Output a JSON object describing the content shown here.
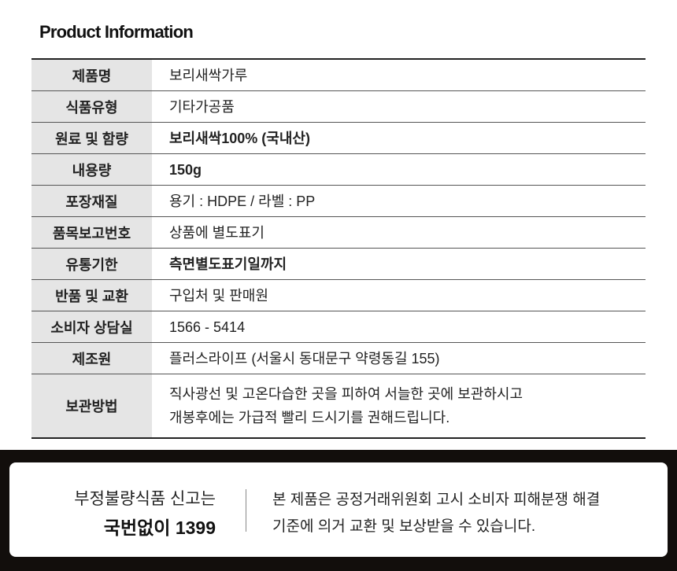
{
  "title": "Product Information",
  "rows": [
    {
      "label": "제품명",
      "value": "보리새싹가루",
      "bold": false
    },
    {
      "label": "식품유형",
      "value": "기타가공품",
      "bold": false
    },
    {
      "label": "원료 및 함량",
      "value": "보리새싹100% (국내산)",
      "bold": true
    },
    {
      "label": "내용량",
      "value": "150g",
      "bold": true
    },
    {
      "label": "포장재질",
      "value": "용기 : HDPE / 라벨 : PP",
      "bold": false
    },
    {
      "label": "품목보고번호",
      "value": "상품에 별도표기",
      "bold": false
    },
    {
      "label": "유통기한",
      "value": "측면별도표기일까지",
      "bold": true
    },
    {
      "label": "반품 및 교환",
      "value": "구입처 및 판매원",
      "bold": false
    },
    {
      "label": "소비자 상담실",
      "value": "1566 - 5414",
      "bold": false
    },
    {
      "label": "제조원",
      "value": "플러스라이프 (서울시 동대문구 약령동길 155)",
      "bold": false
    },
    {
      "label": "보관방법",
      "value": "직사광선 및 고온다습한 곳을 피하여 서늘한 곳에 보관하시고",
      "value2": "개봉후에는 가급적 빨리 드시기를 권해드립니다.",
      "bold": false
    }
  ],
  "footer": {
    "report_line1": "부정불량식품 신고는",
    "report_line2": "국번없이 1399",
    "notice_line1": "본 제품은 공정거래위원회 고시 소비자 피해분쟁 해결",
    "notice_line2": "기준에 의거 교환 및 보상받을 수 있습니다."
  }
}
